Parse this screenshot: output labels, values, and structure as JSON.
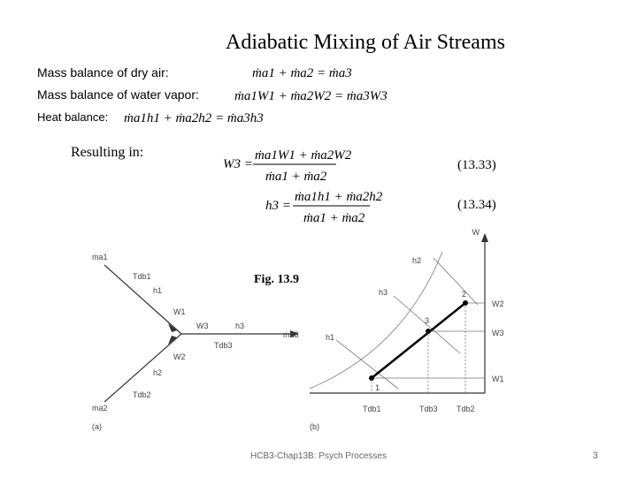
{
  "title": "Adiabatic Mixing of Air Streams",
  "balances": [
    {
      "label": "Mass balance of dry air:",
      "formula": "ṁa1 + ṁa2 = ṁa3"
    },
    {
      "label": "Mass balance of water vapor:",
      "formula": "ṁa1W1 + ṁa2W2 = ṁa3W3"
    },
    {
      "label": "Heat balance:",
      "formula": "ṁa1h1 + ṁa2h2 = ṁa3h3"
    }
  ],
  "resulting_in": "Resulting in:",
  "results": [
    {
      "lhs": "W3 =",
      "numerator": "ṁa1W1 + ṁa2W2",
      "denominator": "ṁa1 + ṁa2",
      "number": "(13.33)"
    },
    {
      "lhs": "h3 =",
      "numerator": "ṁa1h1 + ṁa2h2",
      "denominator": "ṁa1 + ṁa2",
      "number": "(13.34)"
    }
  ],
  "figure_caption": "Fig. 13.9",
  "diagram_a": {
    "m1": "ṁa1",
    "t1": "Tdb1",
    "h1": "h1",
    "w1": "W1",
    "w3": "W3",
    "h3": "h3",
    "m3": "ṁa3",
    "t3": "Tdb3",
    "w2": "W2",
    "h2": "h2",
    "t2": "Tdb2",
    "m2": "ṁa2",
    "tag": "(a)"
  },
  "diagram_b": {
    "w_axis": "W",
    "h2": "h2",
    "h3": "h3",
    "h1": "h1",
    "p2": "2",
    "p3": "3",
    "p1": "1",
    "w2": "W2",
    "w3": "W3",
    "w1": "W1",
    "t1": "Tdb1",
    "t3": "Tdb3",
    "t2": "Tdb2",
    "tag": "(b)"
  },
  "footer": "HCB3-Chap13B: Psych Processes",
  "page_number": "3"
}
